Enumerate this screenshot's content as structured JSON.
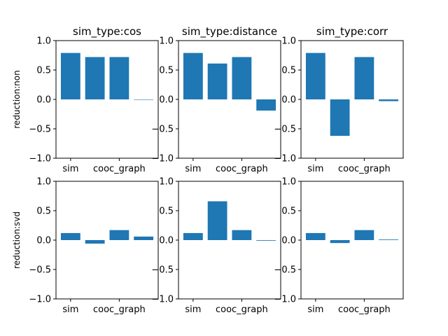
{
  "chart_data": [
    {
      "type": "bar",
      "row": 0,
      "col": 0,
      "title": "sim_type:cos",
      "ylabel": "reduction:non",
      "xtick_labels": [
        "sim",
        "cooc_graph"
      ],
      "values": [
        0.79,
        0.72,
        0.72,
        0.0
      ],
      "ylim": [
        -1.0,
        1.0
      ],
      "yticks": [
        "1.0",
        "0.5",
        "0.0",
        "−0.5",
        "−1.0"
      ]
    },
    {
      "type": "bar",
      "row": 0,
      "col": 1,
      "title": "sim_type:distance",
      "ylabel": "",
      "xtick_labels": [
        "sim",
        "cooc_graph"
      ],
      "values": [
        0.79,
        0.61,
        0.72,
        -0.19
      ],
      "ylim": [
        -1.0,
        1.0
      ],
      "yticks": [
        "1.0",
        "0.5",
        "0.0",
        "−0.5",
        "−1.0"
      ]
    },
    {
      "type": "bar",
      "row": 0,
      "col": 2,
      "title": "sim_type:corr",
      "ylabel": "",
      "xtick_labels": [
        "sim",
        "cooc_graph"
      ],
      "values": [
        0.79,
        -0.62,
        0.72,
        -0.03
      ],
      "ylim": [
        -1.0,
        1.0
      ],
      "yticks": [
        "1.0",
        "0.5",
        "0.0",
        "−0.5",
        "−1.0"
      ]
    },
    {
      "type": "bar",
      "row": 1,
      "col": 0,
      "title": "",
      "ylabel": "reduction:svd",
      "xtick_labels": [
        "sim",
        "cooc_graph"
      ],
      "values": [
        0.12,
        -0.06,
        0.17,
        0.06
      ],
      "ylim": [
        -1.0,
        1.0
      ],
      "yticks": [
        "1.0",
        "0.5",
        "0.0",
        "−0.5",
        "−1.0"
      ]
    },
    {
      "type": "bar",
      "row": 1,
      "col": 1,
      "title": "",
      "ylabel": "",
      "xtick_labels": [
        "sim",
        "cooc_graph"
      ],
      "values": [
        0.12,
        0.66,
        0.17,
        -0.01
      ],
      "ylim": [
        -1.0,
        1.0
      ],
      "yticks": [
        "1.0",
        "0.5",
        "0.0",
        "−0.5",
        "−1.0"
      ]
    },
    {
      "type": "bar",
      "row": 1,
      "col": 2,
      "title": "",
      "ylabel": "",
      "xtick_labels": [
        "sim",
        "cooc_graph"
      ],
      "values": [
        0.12,
        -0.05,
        0.17,
        0.01
      ],
      "ylim": [
        -1.0,
        1.0
      ],
      "yticks": [
        "1.0",
        "0.5",
        "0.0",
        "−0.5",
        "−1.0"
      ]
    }
  ],
  "colors": {
    "bar": "#1f77b4",
    "axis": "#000000"
  }
}
